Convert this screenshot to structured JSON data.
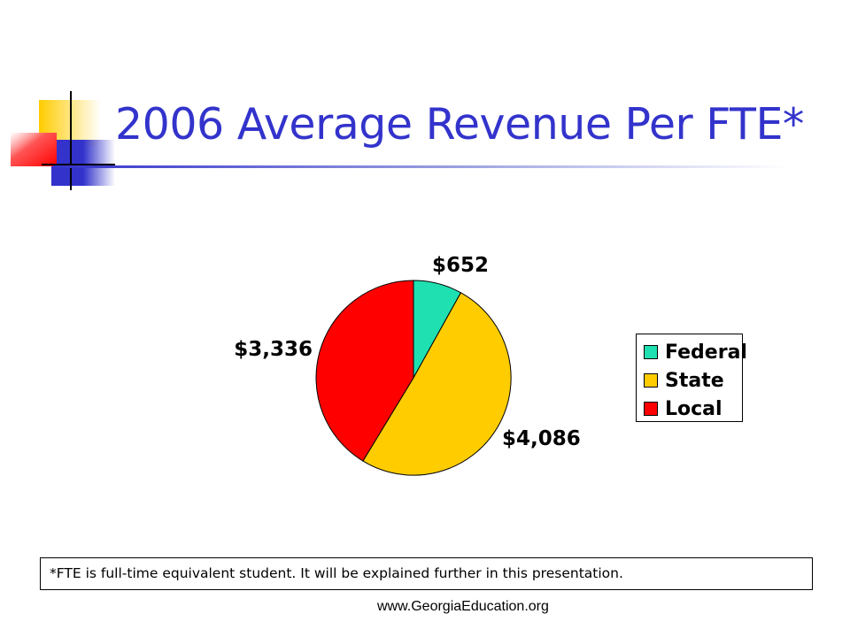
{
  "slide": {
    "title": "2006 Average Revenue Per FTE*",
    "footnote": "*FTE is full-time equivalent student.  It will be explained further in this presentation.",
    "website": "www.GeorgiaEducation.org"
  },
  "chart_data": {
    "type": "pie",
    "title": "",
    "slices": [
      {
        "name": "Federal",
        "value": 652,
        "label": "$652",
        "color": "#1fe0b0"
      },
      {
        "name": "State",
        "value": 4086,
        "label": "$4,086",
        "color": "#ffcc00"
      },
      {
        "name": "Local",
        "value": 3336,
        "label": "$3,336",
        "color": "#ff0000"
      }
    ],
    "start_angle": "12 o'clock",
    "direction": "clockwise",
    "legend_position": "right"
  },
  "legend": {
    "items": [
      {
        "label": "Federal",
        "color": "#1fe0b0"
      },
      {
        "label": "State",
        "color": "#ffcc00"
      },
      {
        "label": "Local",
        "color": "#ff0000"
      }
    ]
  }
}
